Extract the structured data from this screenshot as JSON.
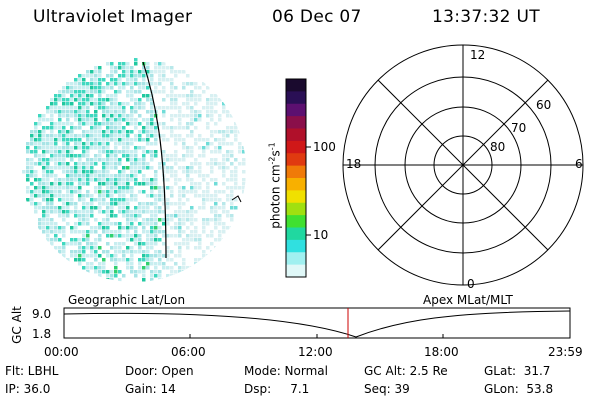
{
  "header": {
    "title": "Ultraviolet Imager",
    "date": "06 Dec 07",
    "time": "13:37:32 UT"
  },
  "colorbar": {
    "label": "photon cm-2s-1",
    "label_parts": [
      "photon cm",
      "-2",
      "s",
      "-1"
    ],
    "ticks": [
      "100",
      "10"
    ],
    "colors": [
      "#1a0a2e",
      "#2a0f55",
      "#5c1070",
      "#8a0f4a",
      "#b0102a",
      "#d01818",
      "#e03a10",
      "#f07a08",
      "#f8b000",
      "#f0e000",
      "#a0e010",
      "#40e030",
      "#20d8a0",
      "#30e0e0",
      "#a0f0f0",
      "#e0f8f8"
    ]
  },
  "polar_plot": {
    "hour_labels": [
      "12",
      "18",
      "6",
      "0"
    ],
    "lat_labels": [
      "60",
      "70",
      "80"
    ]
  },
  "timeline": {
    "left_label": "Geographic Lat/Lon",
    "right_label": "Apex MLat/MLT",
    "axis_label": "GC Alt",
    "y_ticks": [
      "9.0",
      "1.8"
    ],
    "x_ticks": [
      "00:00",
      "06:00",
      "12:00",
      "18:00",
      "23:59"
    ],
    "marker_time": "13:37:32",
    "marker_color": "#cc0000"
  },
  "info": {
    "flt": "Flt: LBHL",
    "ip": "IP: 36.0",
    "door": "Door: Open",
    "gain": "Gain: 14",
    "mode": "Mode: Normal",
    "dsp": "Dsp:     7.1",
    "gcalt": "GC Alt: 2.5 Re",
    "seq": "Seq: 39",
    "glat": "GLat:  31.7",
    "glon": "GLon:  53.8"
  }
}
